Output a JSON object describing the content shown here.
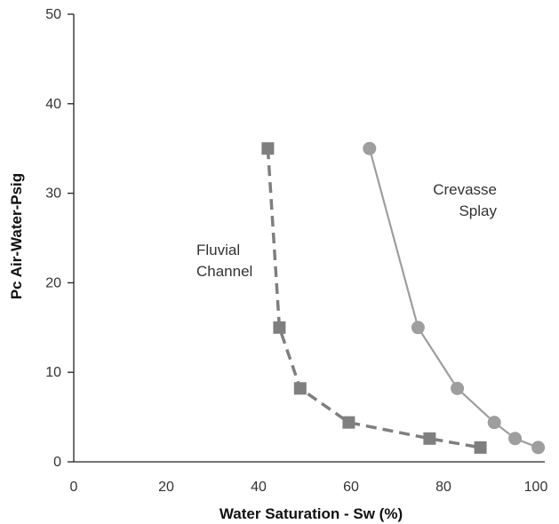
{
  "chart_data": {
    "type": "line",
    "title": "",
    "xlabel": "Water Saturation - Sw (%)",
    "ylabel": "Pc Air-Water-Psig",
    "xlim": [
      0,
      100
    ],
    "ylim": [
      0,
      50
    ],
    "xticks": [
      "0",
      "20",
      "40",
      "60",
      "80",
      "100"
    ],
    "yticks": [
      "0",
      "10",
      "20",
      "30",
      "40",
      "50"
    ],
    "grid": false,
    "legend": "none",
    "series": [
      {
        "name": "Fluvial Channel",
        "label_lines": [
          "Fluvial",
          "Channel"
        ],
        "marker": "square",
        "line_style": "dashed",
        "color": "#7f7f7f",
        "points": [
          {
            "x": 42,
            "y": 35
          },
          {
            "x": 44.5,
            "y": 15
          },
          {
            "x": 49,
            "y": 8.2
          },
          {
            "x": 59.5,
            "y": 4.4
          },
          {
            "x": 77,
            "y": 2.6
          },
          {
            "x": 88,
            "y": 1.6
          }
        ]
      },
      {
        "name": "Crevasse Splay",
        "label_lines": [
          "Crevasse",
          "Splay"
        ],
        "marker": "circle",
        "line_style": "solid",
        "color": "#9e9e9e",
        "points": [
          {
            "x": 64,
            "y": 35
          },
          {
            "x": 74.5,
            "y": 15
          },
          {
            "x": 83,
            "y": 8.2
          },
          {
            "x": 91,
            "y": 4.4
          },
          {
            "x": 95.5,
            "y": 2.6
          },
          {
            "x": 100.5,
            "y": 1.6
          }
        ]
      }
    ]
  }
}
